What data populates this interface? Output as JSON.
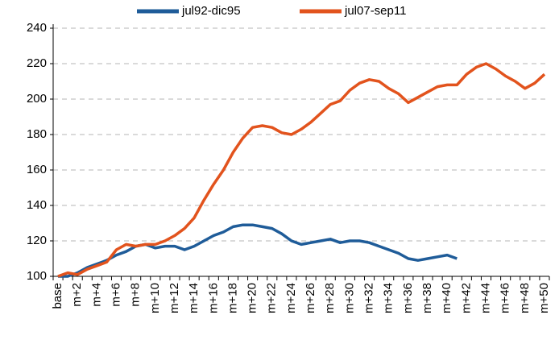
{
  "chart_data": {
    "type": "line",
    "categories": [
      "base",
      null,
      "m+2",
      null,
      "m+4",
      null,
      "m+6",
      null,
      "m+8",
      null,
      "m+10",
      null,
      "m+12",
      null,
      "m+14",
      null,
      "m+16",
      null,
      "m+18",
      null,
      "m+20",
      null,
      "m+22",
      null,
      "m+24",
      null,
      "m+26",
      null,
      "m+28",
      null,
      "m+30",
      null,
      "m+32",
      null,
      "m+34",
      null,
      "m+36",
      null,
      "m+38",
      null,
      "m+40",
      null,
      "m+42",
      null,
      "m+44",
      null,
      "m+46",
      null,
      "m+48",
      null,
      "m+50"
    ],
    "series": [
      {
        "name": "jul92-dic95",
        "color": "#1f5c99",
        "values": [
          100,
          100,
          102,
          105,
          107,
          109,
          112,
          114,
          117,
          118,
          116,
          117,
          117,
          115,
          117,
          120,
          123,
          125,
          128,
          129,
          129,
          128,
          127,
          124,
          120,
          118,
          119,
          120,
          121,
          119,
          120,
          120,
          119,
          117,
          115,
          113,
          110,
          109,
          110,
          111,
          112,
          110,
          null,
          null,
          null,
          null,
          null,
          null,
          null,
          null,
          null
        ]
      },
      {
        "name": "jul07-sep11",
        "color": "#e2531d",
        "values": [
          100,
          102,
          101,
          104,
          106,
          108,
          115,
          118,
          117,
          118,
          118,
          120,
          123,
          127,
          133,
          143,
          152,
          160,
          170,
          178,
          184,
          185,
          184,
          181,
          180,
          183,
          187,
          192,
          197,
          199,
          205,
          209,
          211,
          210,
          206,
          203,
          198,
          201,
          204,
          207,
          208,
          208,
          214,
          218,
          220,
          217,
          213,
          210,
          206,
          209,
          214
        ]
      }
    ],
    "ylim": [
      100,
      240
    ],
    "yticks": [
      100,
      120,
      140,
      160,
      180,
      200,
      220,
      240
    ],
    "grid": true,
    "legend": "top"
  }
}
